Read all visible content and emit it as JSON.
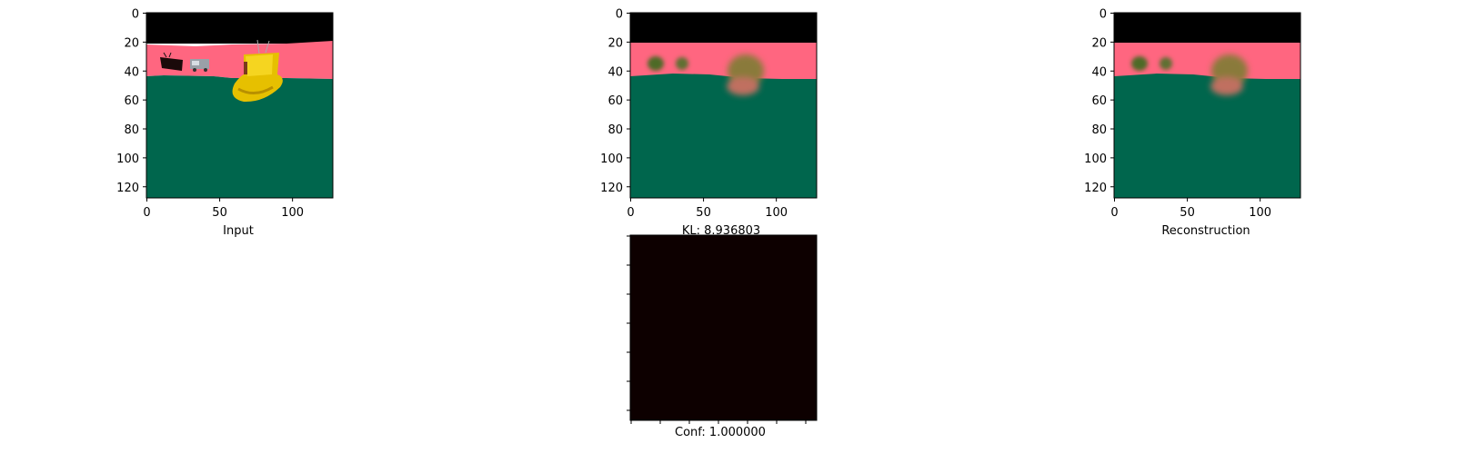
{
  "chart_data": [
    {
      "type": "image",
      "panel": "input",
      "xlabel": "Input",
      "x_ticks": [
        0,
        50,
        100
      ],
      "y_ticks": [
        0,
        20,
        40,
        60,
        80,
        100,
        120
      ],
      "xlim": [
        0,
        128
      ],
      "ylim": [
        128,
        0
      ],
      "colors": {
        "sky": "#000000",
        "wall": "#FF6680",
        "floor": "#00664D",
        "object": "#E6C000"
      }
    },
    {
      "type": "image",
      "panel": "kl",
      "xlabel": "KL: 8.936803",
      "x_ticks": [
        0,
        50,
        100
      ],
      "y_ticks": [
        0,
        20,
        40,
        60,
        80,
        100,
        120
      ],
      "xlim": [
        0,
        128
      ],
      "ylim": [
        128,
        0
      ]
    },
    {
      "type": "image",
      "panel": "reconstruction",
      "xlabel": "Reconstruction",
      "x_ticks": [
        0,
        50,
        100
      ],
      "y_ticks": [
        0,
        20,
        40,
        60,
        80,
        100,
        120
      ],
      "xlim": [
        0,
        128
      ],
      "ylim": [
        128,
        0
      ]
    },
    {
      "type": "heatmap",
      "panel": "confidence",
      "xlabel": "Conf: 1.000000",
      "fill_color": "#0D0000"
    }
  ]
}
